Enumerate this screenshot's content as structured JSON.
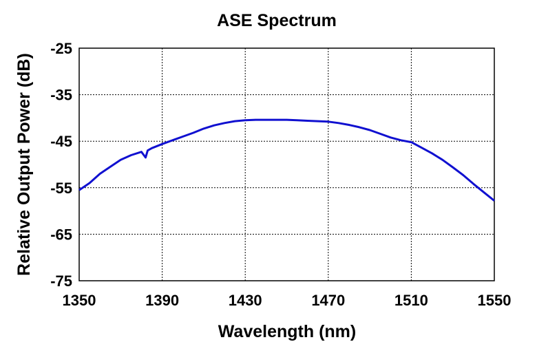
{
  "chart_data": {
    "type": "line",
    "title": "ASE Spectrum",
    "xlabel": "Wavelength (nm)",
    "ylabel": "Relative Output Power (dB)",
    "xlim": [
      1350,
      1550
    ],
    "ylim": [
      -75,
      -25
    ],
    "xticks": [
      1350,
      1390,
      1430,
      1470,
      1510,
      1550
    ],
    "yticks": [
      -25,
      -35,
      -45,
      -55,
      -65,
      -75
    ],
    "xtick_labels": [
      "1350",
      "1390",
      "1430",
      "1470",
      "1510",
      "1550"
    ],
    "ytick_labels": [
      "-25",
      "-35",
      "-45",
      "-55",
      "-65",
      "-75"
    ],
    "grid": true,
    "legend": "none",
    "series": [
      {
        "color": "#1010d0",
        "x": [
          1350,
          1355,
          1360,
          1365,
          1370,
          1375,
          1380,
          1382,
          1383,
          1385,
          1390,
          1395,
          1400,
          1405,
          1410,
          1415,
          1420,
          1425,
          1430,
          1435,
          1440,
          1445,
          1450,
          1455,
          1460,
          1465,
          1470,
          1475,
          1480,
          1485,
          1490,
          1495,
          1500,
          1505,
          1510,
          1515,
          1520,
          1525,
          1530,
          1535,
          1540,
          1545,
          1550
        ],
        "y": [
          -55.5,
          -54.0,
          -52.0,
          -50.5,
          -49.0,
          -48.0,
          -47.3,
          -48.5,
          -47.0,
          -46.5,
          -45.6,
          -44.8,
          -44.0,
          -43.2,
          -42.3,
          -41.6,
          -41.1,
          -40.7,
          -40.5,
          -40.4,
          -40.4,
          -40.4,
          -40.4,
          -40.5,
          -40.6,
          -40.7,
          -40.8,
          -41.1,
          -41.5,
          -42.0,
          -42.6,
          -43.4,
          -44.2,
          -44.8,
          -45.2,
          -46.4,
          -47.6,
          -49.0,
          -50.6,
          -52.3,
          -54.2,
          -56.0,
          -57.8
        ]
      }
    ]
  }
}
